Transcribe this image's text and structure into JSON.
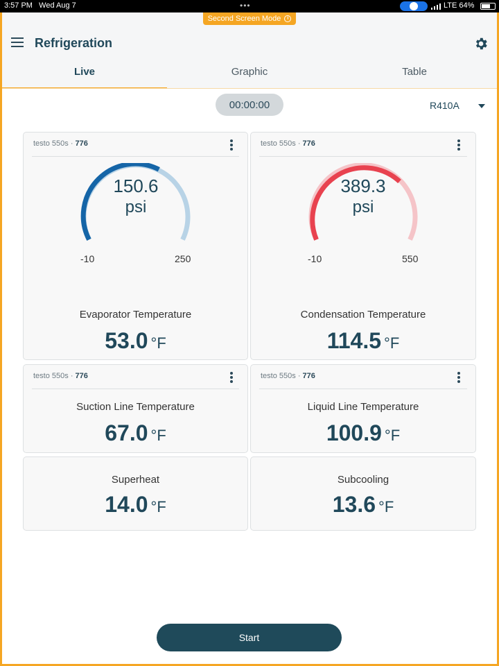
{
  "status_bar": {
    "time": "3:57 PM",
    "date": "Wed Aug 7",
    "network": "LTE 64%"
  },
  "banner": {
    "label": "Second Screen Mode",
    "info_glyph": "i"
  },
  "header": {
    "title": "Refrigeration"
  },
  "tabs": [
    {
      "label": "Live"
    },
    {
      "label": "Graphic"
    },
    {
      "label": "Table"
    }
  ],
  "timer": "00:00:00",
  "refrigerant": "R410A",
  "cards": [
    {
      "device": "testo 550s · ",
      "serial": "776",
      "gauge": {
        "value": "150.6",
        "unit": "psi",
        "min": "-10",
        "max": "250",
        "color": "#1565a7",
        "track": "#b8d3e6"
      },
      "label": "Evaporator Temperature",
      "value": "53.0",
      "unit": "°F"
    },
    {
      "device": "testo 550s · ",
      "serial": "776",
      "gauge": {
        "value": "389.3",
        "unit": "psi",
        "min": "-10",
        "max": "550",
        "color": "#e8424f",
        "track": "#f5c4c8"
      },
      "label": "Condensation Temperature",
      "value": "114.5",
      "unit": "°F"
    },
    {
      "device": "testo 550s · ",
      "serial": "776",
      "label": "Suction Line Temperature",
      "value": "67.0",
      "unit": "°F"
    },
    {
      "device": "testo 550s · ",
      "serial": "776",
      "label": "Liquid Line Temperature",
      "value": "100.9",
      "unit": "°F"
    },
    {
      "label": "Superheat",
      "value": "14.0",
      "unit": "°F"
    },
    {
      "label": "Subcooling",
      "value": "13.6",
      "unit": "°F"
    }
  ],
  "start_button": "Start"
}
